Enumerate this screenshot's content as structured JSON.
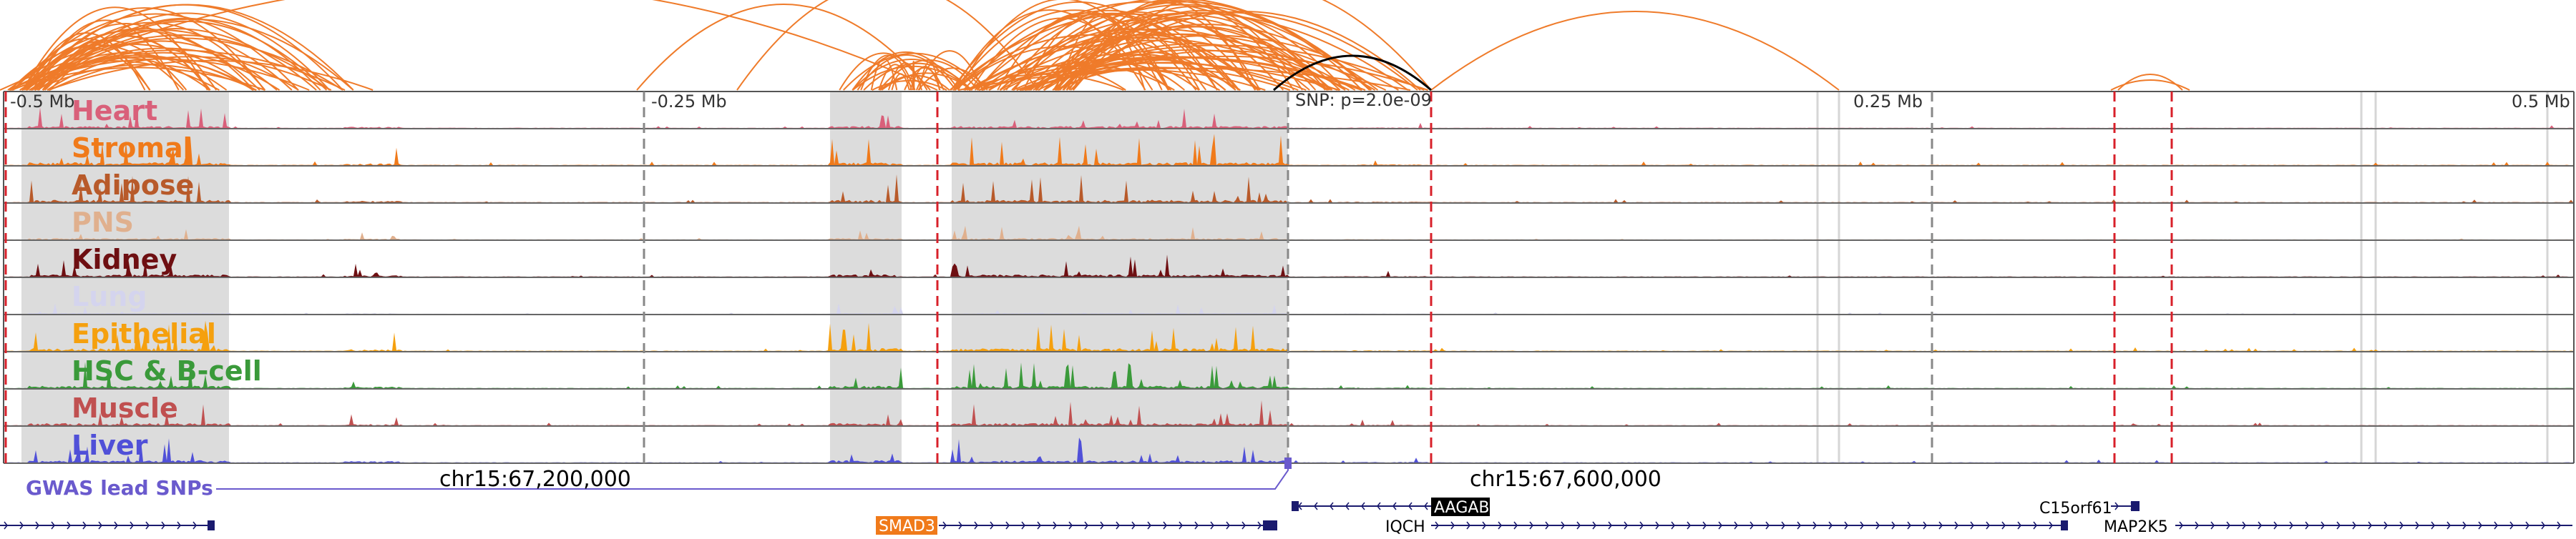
{
  "axis": {
    "ticks": [
      "-0.5 Mb",
      "-0.25 Mb",
      "0.25 Mb",
      "0.5 Mb"
    ],
    "snp_label": "SNP: p=2.0e-09"
  },
  "tracks": [
    {
      "name": "Heart",
      "color": "#d9607a"
    },
    {
      "name": "Stromal",
      "color": "#f07a1a"
    },
    {
      "name": "Adipose",
      "color": "#b85a2a"
    },
    {
      "name": "PNS",
      "color": "#e0b08e"
    },
    {
      "name": "Kidney",
      "color": "#6e0f12"
    },
    {
      "name": "Lung",
      "color": "#d4d4ee"
    },
    {
      "name": "Epithelial",
      "color": "#f5a00e"
    },
    {
      "name": "HSC & B-cell",
      "color": "#3a9a3a"
    },
    {
      "name": "Muscle",
      "color": "#c05050"
    },
    {
      "name": "Liver",
      "color": "#5050d8"
    }
  ],
  "gwas": {
    "label": "GWAS lead SNPs",
    "color": "#6a5acd"
  },
  "coordinates": {
    "left": "chr15:67,200,000",
    "right": "chr15:67,600,000"
  },
  "genes": [
    {
      "name": "SMAD3",
      "style": "highlight-orange"
    },
    {
      "name": "AAGAB",
      "style": "highlight-black"
    },
    {
      "name": "IQCH",
      "style": "plain"
    },
    {
      "name": "C15orf61",
      "style": "plain"
    },
    {
      "name": "MAP2K5",
      "style": "plain"
    }
  ],
  "colors": {
    "loop_orange": "#ef7b2a",
    "loop_black": "#000000",
    "gene_blue": "#1a1a6e",
    "marker_red": "#d8202a",
    "marker_grey": "#888888",
    "highlight_band": "#dcdcdc"
  }
}
